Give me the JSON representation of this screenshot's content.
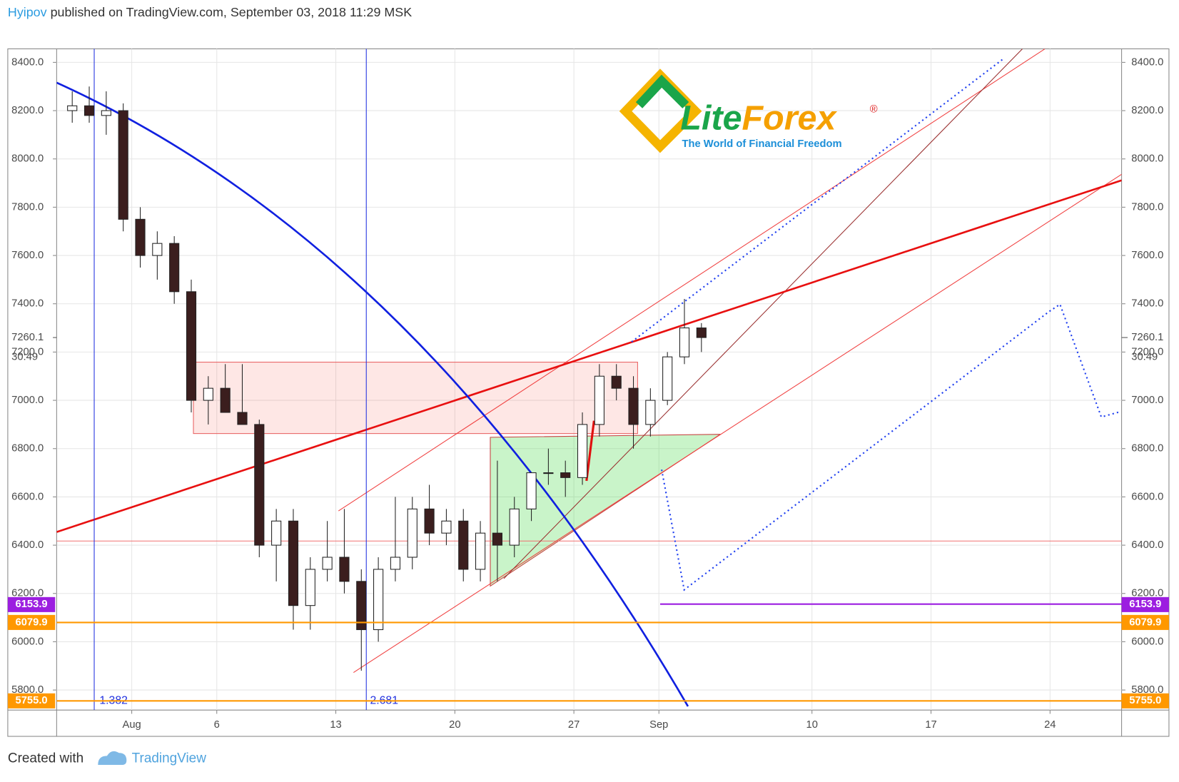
{
  "header": {
    "author": "Hyipov",
    "text": "published on TradingView.com, September 03, 2018 11:29 MSK"
  },
  "logo": {
    "name_parts": [
      "Lite",
      "Forex"
    ],
    "mark": "®",
    "tagline": "The World of Financial Freedom"
  },
  "chart_data": {
    "type": "candlestick",
    "x": [
      "2018-07-28",
      "2018-07-29",
      "2018-07-30",
      "2018-07-31",
      "2018-08-01",
      "2018-08-02",
      "2018-08-03",
      "2018-08-04",
      "2018-08-05",
      "2018-08-06",
      "2018-08-07",
      "2018-08-08",
      "2018-08-09",
      "2018-08-10",
      "2018-08-11",
      "2018-08-12",
      "2018-08-13",
      "2018-08-14",
      "2018-08-15",
      "2018-08-16",
      "2018-08-17",
      "2018-08-18",
      "2018-08-19",
      "2018-08-20",
      "2018-08-21",
      "2018-08-22",
      "2018-08-23",
      "2018-08-24",
      "2018-08-25",
      "2018-08-26",
      "2018-08-27",
      "2018-08-28",
      "2018-08-29",
      "2018-08-30",
      "2018-08-31",
      "2018-09-01",
      "2018-09-02",
      "2018-09-03"
    ],
    "open": [
      8200,
      8220,
      8180,
      8200,
      7750,
      7600,
      7650,
      7450,
      7000,
      7050,
      6950,
      6900,
      6400,
      6500,
      6150,
      6300,
      6350,
      6250,
      6050,
      6300,
      6350,
      6550,
      6450,
      6500,
      6300,
      6450,
      6400,
      6550,
      6700,
      6700,
      6680,
      6900,
      7100,
      7050,
      6900,
      7000,
      7180,
      7300
    ],
    "high": [
      8280,
      8300,
      8280,
      8230,
      7800,
      7700,
      7680,
      7500,
      7100,
      7150,
      7150,
      6920,
      6550,
      6550,
      6350,
      6500,
      6550,
      6300,
      6350,
      6600,
      6600,
      6650,
      6550,
      6550,
      6500,
      6750,
      6600,
      6700,
      6800,
      6750,
      6950,
      7150,
      7150,
      7100,
      7050,
      7200,
      7420,
      7320
    ],
    "low": [
      8150,
      8150,
      8100,
      7700,
      7550,
      7500,
      7400,
      6950,
      6900,
      6950,
      6900,
      6350,
      6250,
      6050,
      6050,
      6250,
      6200,
      5880,
      6000,
      6250,
      6300,
      6400,
      6400,
      6250,
      6250,
      6250,
      6350,
      6500,
      6650,
      6600,
      6650,
      6850,
      7000,
      6800,
      6850,
      6980,
      7150,
      7200
    ],
    "close": [
      8220,
      8180,
      8200,
      7750,
      7600,
      7650,
      7450,
      7000,
      7050,
      6950,
      6900,
      6400,
      6500,
      6150,
      6300,
      6350,
      6250,
      6050,
      6300,
      6350,
      6550,
      6450,
      6500,
      6300,
      6450,
      6400,
      6550,
      6700,
      6700,
      6680,
      6900,
      7100,
      7050,
      6900,
      7000,
      7180,
      7300,
      7260.1
    ],
    "ylim": [
      5717,
      8456
    ],
    "yticks": [
      {
        "value": 5800,
        "label": "5800.0"
      },
      {
        "value": 6000,
        "label": "6000.0"
      },
      {
        "value": 6200,
        "label": "6200.0"
      },
      {
        "value": 6400,
        "label": "6400.0"
      },
      {
        "value": 6600,
        "label": "6600.0"
      },
      {
        "value": 6800,
        "label": "6800.0"
      },
      {
        "value": 7000,
        "label": "7000.0"
      },
      {
        "value": 7200,
        "label": "7200.0"
      },
      {
        "value": 7400,
        "label": "7400.0"
      },
      {
        "value": 7600,
        "label": "7600.0"
      },
      {
        "value": 7800,
        "label": "7800.0"
      },
      {
        "value": 8000,
        "label": "8000.0"
      },
      {
        "value": 8200,
        "label": "8200.0"
      },
      {
        "value": 8400,
        "label": "8400.0"
      }
    ],
    "xlim": [
      "2018-07-27T14:00:00Z",
      "2018-09-28T05:00:00Z"
    ],
    "xticks": [
      {
        "value": "2018-08-01",
        "label": "Aug"
      },
      {
        "value": "2018-08-06",
        "label": "6"
      },
      {
        "value": "2018-08-13",
        "label": "13"
      },
      {
        "value": "2018-08-20",
        "label": "20"
      },
      {
        "value": "2018-08-27",
        "label": "27"
      },
      {
        "value": "2018-09-01",
        "label": "Sep"
      },
      {
        "value": "2018-09-10",
        "label": "10"
      },
      {
        "value": "2018-09-17",
        "label": "17"
      },
      {
        "value": "2018-09-24",
        "label": "24"
      }
    ],
    "grid": true,
    "up_color": "#ffffff",
    "down_color": "#3b1e1e",
    "last_price": 7260.1,
    "countdown": "30:49",
    "levels": [
      {
        "value": 6153.9,
        "color": "#9c1ee0"
      },
      {
        "value": 6079.9,
        "color": "#ff9800"
      },
      {
        "value": 5755.0,
        "label": "5755.0",
        "color": "#ff9800"
      }
    ],
    "annotations": [
      "1.382",
      "2.681"
    ]
  },
  "footer": {
    "created_with": "Created with",
    "brand": "TradingView"
  }
}
